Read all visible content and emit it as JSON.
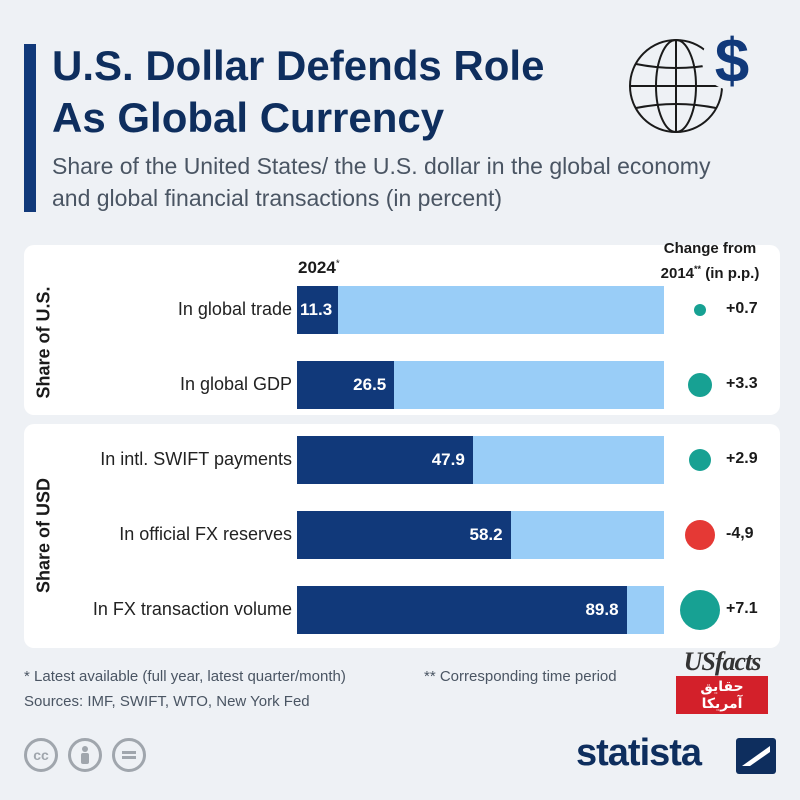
{
  "title_line1": "U.S. Dollar Defends Role",
  "title_line2": "As Global Currency",
  "subtitle": "Share of the United States/ the U.S. dollar in the global economy and global financial transactions (in percent)",
  "year_label": "2024",
  "year_mark": "*",
  "change_header_line1": "Change from",
  "change_header_line2": "2014",
  "change_header_mark": "**",
  "change_header_unit": " (in p.p.)",
  "group_us": "Share of U.S.",
  "group_usd": "Share of USD",
  "footnote1": "* Latest available (full year, latest quarter/month)",
  "footnote2": "** Corresponding time period",
  "sources": "Sources: IMF, SWIFT, WTO, New York Fed",
  "usfacts_brand": "USfacts",
  "usfacts_arabic_1": "حقایق",
  "usfacts_arabic_2": "آمریکا",
  "statista_brand": "statista",
  "colors": {
    "dark": "#11397a",
    "light": "#99cdf7",
    "positive": "#17a193",
    "negative": "#e53935"
  },
  "chart_data": {
    "type": "bar",
    "orientation": "horizontal",
    "title": "U.S. Dollar Defends Role As Global Currency",
    "xlim": [
      0,
      100
    ],
    "categories": [
      "In global trade",
      "In global GDP",
      "In intl. SWIFT payments",
      "In official FX reserves",
      "In FX transaction volume"
    ],
    "groups": [
      "Share of U.S.",
      "Share of U.S.",
      "Share of USD",
      "Share of USD",
      "Share of USD"
    ],
    "values": [
      11.3,
      26.5,
      47.9,
      58.2,
      89.8
    ],
    "value_labels": [
      "11.3",
      "26.5",
      "47.9",
      "58.2",
      "89.8"
    ],
    "change": [
      0.7,
      3.3,
      2.9,
      -4.9,
      7.1
    ],
    "change_labels": [
      "+0.7",
      "+3.3",
      "+2.9",
      "-4,9",
      "+7.1"
    ]
  }
}
